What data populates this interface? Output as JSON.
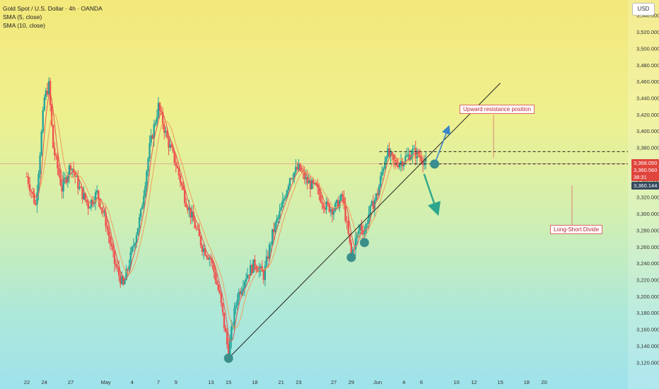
{
  "legend": {
    "title": "Gold Spot / U.S. Dollar · 4h · OANDA",
    "sma5": "SMA (5, close)",
    "sma10": "SMA (10, close)"
  },
  "currency_button": "USD",
  "price_tags": {
    "tag1": "3,368.050",
    "tag2": "3,360.560",
    "tag2_sub": "38:31",
    "tag3": "3,360.144"
  },
  "annotations": {
    "resistance": "Upward resistance position",
    "divide": "Long-Short Divide"
  },
  "colors": {
    "up": "#26a69a",
    "down": "#ef5350",
    "sma5": "#e6534a",
    "sma10": "#f0a05a",
    "trendline": "#222222",
    "marker": "#3a8f8a"
  },
  "chart_data": {
    "type": "candlestick",
    "ylim": [
      3110,
      3550
    ],
    "y_ticks": [
      3120,
      3140,
      3160,
      3180,
      3200,
      3220,
      3240,
      3260,
      3280,
      3300,
      3320,
      3340,
      3360,
      3380,
      3400,
      3420,
      3440,
      3460,
      3480,
      3500,
      3520,
      3540
    ],
    "y_tick_labels": [
      "3,120.000",
      "3,140.000",
      "3,160.000",
      "3,180.000",
      "3,200.000",
      "3,220.000",
      "3,240.000",
      "3,260.000",
      "3,280.000",
      "3,300.000",
      "3,320.000",
      "3,340.000",
      "3,360.000",
      "3,380.000",
      "3,400.000",
      "3,420.000",
      "3,440.000",
      "3,460.000",
      "3,480.000",
      "3,500.000",
      "3,520.000",
      "3,540.000"
    ],
    "x_labels": [
      "22",
      "24",
      "27",
      "May",
      "4",
      "7",
      "9",
      "13",
      "15",
      "18",
      "21",
      "23",
      "27",
      "29",
      "Jun",
      "4",
      "6",
      "10",
      "12",
      "15",
      "18",
      "20"
    ],
    "x_label_days": [
      0,
      2,
      5,
      9,
      12,
      15,
      17,
      21,
      23,
      26,
      29,
      31,
      35,
      37,
      40,
      43,
      45,
      49,
      51,
      54,
      57,
      59
    ],
    "bars_per_day": 6,
    "day_anchor": {
      "first_day_x": 38,
      "px_per_day": 12.4
    },
    "price_levels": [
      {
        "name": "upward-resistance",
        "price": 3375
      },
      {
        "name": "long-short-divide",
        "price": 3360.144
      }
    ],
    "current_price": 3360.56,
    "trendline": {
      "points": [
        {
          "day": 23,
          "price": 3125
        },
        {
          "day": 54,
          "price": 3458
        }
      ]
    },
    "pivot_markers": [
      {
        "day": 23,
        "price": 3125
      },
      {
        "day": 37,
        "price": 3247
      },
      {
        "day": 38.5,
        "price": 3265
      },
      {
        "day": 46.5,
        "price": 3360
      }
    ],
    "arrows": [
      {
        "from": {
          "day": 46.5,
          "price": 3360
        },
        "to": {
          "day": 48,
          "price": 3402
        }
      },
      {
        "from": {
          "day": 45.3,
          "price": 3348
        },
        "to": {
          "day": 46.7,
          "price": 3305
        }
      }
    ],
    "path": [
      [
        0,
        3345
      ],
      [
        1,
        3310
      ],
      [
        2,
        3440
      ],
      [
        2.5,
        3455
      ],
      [
        3,
        3380
      ],
      [
        4,
        3330
      ],
      [
        5,
        3360
      ],
      [
        6,
        3330
      ],
      [
        7,
        3310
      ],
      [
        8,
        3325
      ],
      [
        9,
        3290
      ],
      [
        10,
        3240
      ],
      [
        11,
        3212
      ],
      [
        12,
        3255
      ],
      [
        13,
        3300
      ],
      [
        14,
        3380
      ],
      [
        15,
        3430
      ],
      [
        16,
        3390
      ],
      [
        17,
        3360
      ],
      [
        18,
        3320
      ],
      [
        19,
        3290
      ],
      [
        20,
        3260
      ],
      [
        21,
        3245
      ],
      [
        22,
        3200
      ],
      [
        23,
        3130
      ],
      [
        23.5,
        3170
      ],
      [
        24,
        3200
      ],
      [
        25,
        3225
      ],
      [
        26,
        3240
      ],
      [
        27,
        3225
      ],
      [
        28,
        3275
      ],
      [
        29,
        3305
      ],
      [
        30,
        3345
      ],
      [
        31,
        3355
      ],
      [
        32,
        3338
      ],
      [
        33,
        3330
      ],
      [
        34,
        3310
      ],
      [
        35,
        3305
      ],
      [
        36,
        3320
      ],
      [
        37,
        3250
      ],
      [
        38,
        3285
      ],
      [
        38.5,
        3278
      ],
      [
        39,
        3300
      ],
      [
        40,
        3325
      ],
      [
        41,
        3375
      ],
      [
        42,
        3360
      ],
      [
        43,
        3365
      ],
      [
        44,
        3375
      ],
      [
        45,
        3368
      ],
      [
        45.5,
        3360.56
      ]
    ]
  }
}
